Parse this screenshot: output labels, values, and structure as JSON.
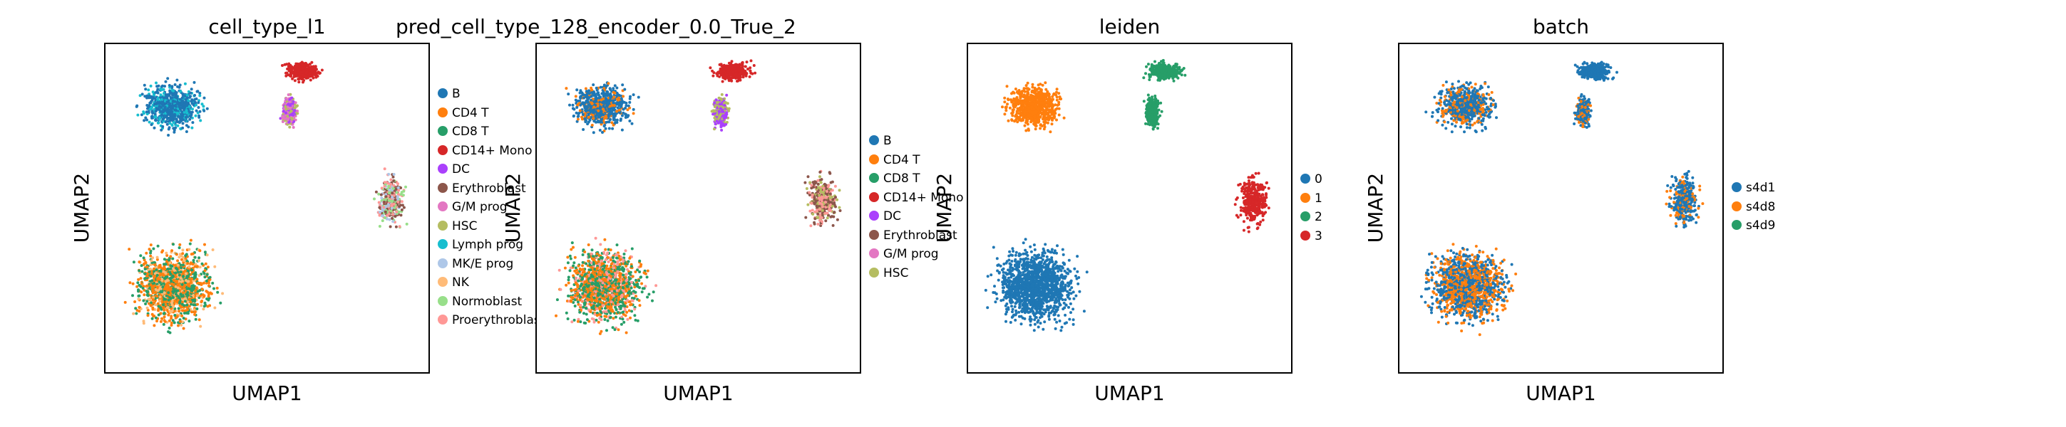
{
  "chart_data": [
    {
      "type": "scatter",
      "title": "cell_type_l1",
      "xlabel": "UMAP1",
      "ylabel": "UMAP2",
      "legend": [
        {
          "label": "B",
          "color": "#1f77b4"
        },
        {
          "label": "CD4 T",
          "color": "#ff7f0e"
        },
        {
          "label": "CD8 T",
          "color": "#279e68"
        },
        {
          "label": "CD14+ Mono",
          "color": "#d62728"
        },
        {
          "label": "DC",
          "color": "#aa40fc"
        },
        {
          "label": "Erythroblast",
          "color": "#8c564b"
        },
        {
          "label": "G/M prog",
          "color": "#e377c2"
        },
        {
          "label": "HSC",
          "color": "#b5bd61"
        },
        {
          "label": "Lymph prog",
          "color": "#17becf"
        },
        {
          "label": "MK/E prog",
          "color": "#aec7e8"
        },
        {
          "label": "NK",
          "color": "#ffbb78"
        },
        {
          "label": "Normoblast",
          "color": "#98df8a"
        },
        {
          "label": "Proerythroblast",
          "color": "#ff9896"
        }
      ]
    },
    {
      "type": "scatter",
      "title": "pred_cell_type_128_encoder_0.0_True_2",
      "xlabel": "UMAP1",
      "ylabel": "UMAP2",
      "legend": [
        {
          "label": "B",
          "color": "#1f77b4"
        },
        {
          "label": "CD4 T",
          "color": "#ff7f0e"
        },
        {
          "label": "CD8 T",
          "color": "#279e68"
        },
        {
          "label": "CD14+ Mono",
          "color": "#d62728"
        },
        {
          "label": "DC",
          "color": "#aa40fc"
        },
        {
          "label": "Erythroblast",
          "color": "#8c564b"
        },
        {
          "label": "G/M prog",
          "color": "#e377c2"
        },
        {
          "label": "HSC",
          "color": "#b5bd61"
        }
      ]
    },
    {
      "type": "scatter",
      "title": "leiden",
      "xlabel": "UMAP1",
      "ylabel": "UMAP2",
      "legend": [
        {
          "label": "0",
          "color": "#1f77b4"
        },
        {
          "label": "1",
          "color": "#ff7f0e"
        },
        {
          "label": "2",
          "color": "#279e68"
        },
        {
          "label": "3",
          "color": "#d62728"
        }
      ]
    },
    {
      "type": "scatter",
      "title": "batch",
      "xlabel": "UMAP1",
      "ylabel": "UMAP2",
      "legend": [
        {
          "label": "s4d1",
          "color": "#1f77b4"
        },
        {
          "label": "s4d8",
          "color": "#ff7f0e"
        },
        {
          "label": "s4d9",
          "color": "#279e68"
        }
      ]
    }
  ]
}
